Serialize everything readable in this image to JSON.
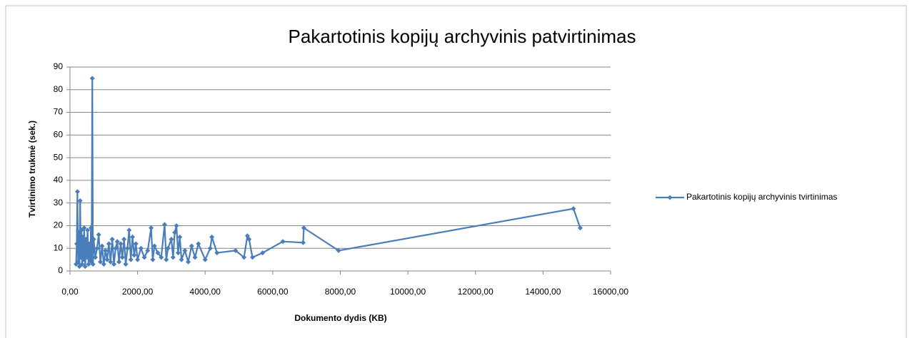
{
  "chart_data": {
    "type": "line",
    "title": "Pakartotinis kopijų archyvinis patvirtinimas",
    "x_label": "Dokumento dydis  (KB)",
    "y_label": "Tvirtinimo trukmė  (sek.)",
    "xlim": [
      0,
      16000
    ],
    "xticks": [
      {
        "value": 0,
        "label": "0,00"
      },
      {
        "value": 2000,
        "label": "2000,00"
      },
      {
        "value": 4000,
        "label": "4000,00"
      },
      {
        "value": 6000,
        "label": "6000,00"
      },
      {
        "value": 8000,
        "label": "8000,00"
      },
      {
        "value": 10000,
        "label": "10000,00"
      },
      {
        "value": 12000,
        "label": "12000,00"
      },
      {
        "value": 14000,
        "label": "14000,00"
      },
      {
        "value": 16000,
        "label": "16000,00"
      }
    ],
    "ylim": [
      0,
      90
    ],
    "yticks": [
      0,
      10,
      20,
      30,
      40,
      50,
      60,
      70,
      80,
      90
    ],
    "grid": true,
    "legend": "right",
    "series": [
      {
        "name": "Pakartotinis kopijų archyvinis tvirtinimas",
        "color": "#4a7ebb",
        "x": [
          180,
          200,
          220,
          240,
          260,
          280,
          300,
          320,
          340,
          360,
          380,
          400,
          420,
          450,
          480,
          500,
          520,
          550,
          580,
          600,
          620,
          640,
          660,
          680,
          700,
          750,
          800,
          850,
          900,
          950,
          1000,
          1050,
          1100,
          1150,
          1200,
          1250,
          1300,
          1350,
          1400,
          1450,
          1500,
          1550,
          1600,
          1650,
          1700,
          1750,
          1800,
          1850,
          1900,
          1950,
          2000,
          2100,
          2200,
          2300,
          2400,
          2450,
          2500,
          2600,
          2700,
          2800,
          2850,
          2900,
          3000,
          3050,
          3100,
          3150,
          3200,
          3250,
          3300,
          3400,
          3500,
          3600,
          3700,
          3800,
          4000,
          4150,
          4200,
          4350,
          4900,
          5150,
          5250,
          5300,
          5400,
          5700,
          6300,
          6900,
          6920,
          7950,
          14900,
          15100
        ],
        "values": [
          3,
          12,
          35,
          4,
          17,
          2,
          31,
          6,
          18,
          3,
          15,
          5,
          19,
          2,
          14,
          6,
          18,
          3,
          12,
          5,
          19,
          4,
          85,
          3,
          14,
          6,
          10,
          16,
          4,
          11,
          3,
          9,
          5,
          12,
          4,
          14,
          3,
          10,
          13,
          4,
          12,
          6,
          14,
          3,
          10,
          18,
          5,
          15,
          7,
          12,
          5,
          10,
          6,
          9,
          19,
          5,
          11,
          8,
          6,
          20.5,
          5,
          10,
          14,
          6,
          17,
          20,
          8,
          15,
          5,
          9,
          4,
          11,
          6,
          12,
          5,
          10,
          15,
          8,
          9,
          6,
          15.5,
          14,
          6,
          8,
          13,
          12.5,
          19,
          9,
          27.5,
          19
        ]
      }
    ]
  }
}
